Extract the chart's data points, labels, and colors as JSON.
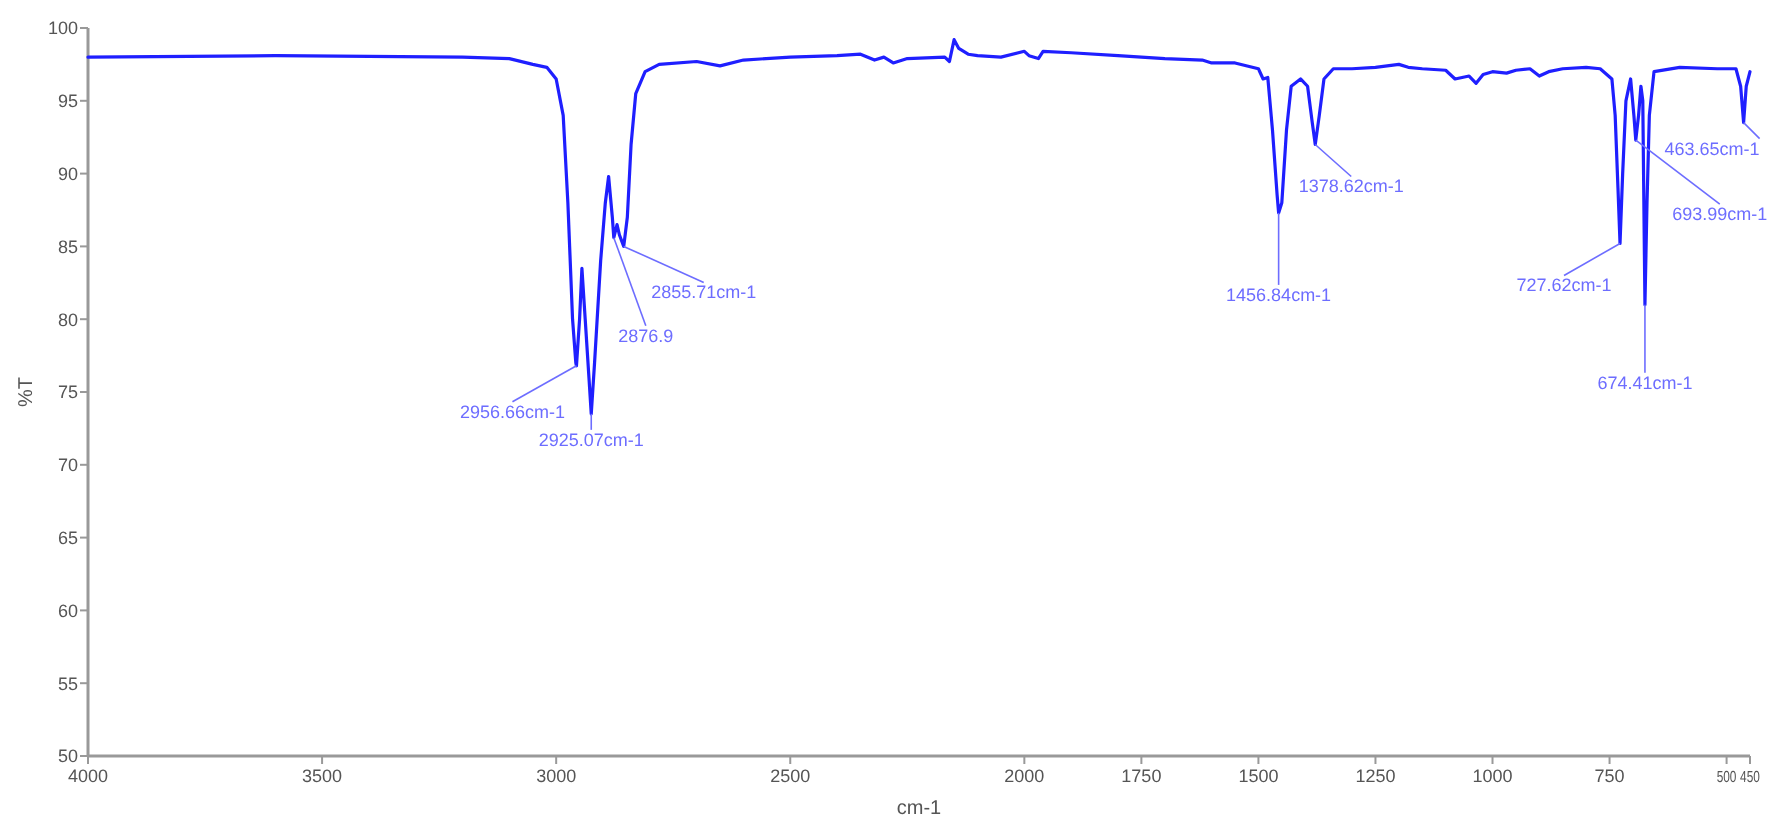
{
  "chart_data": {
    "type": "line",
    "xlabel": "cm-1",
    "ylabel": "%T",
    "xlim": [
      4000,
      450
    ],
    "ylim": [
      50,
      100
    ],
    "xticks": [
      4000,
      3500,
      3000,
      2500,
      2000,
      1750,
      1500,
      1250,
      1000,
      750,
      500,
      450
    ],
    "yticks": [
      50,
      55,
      60,
      65,
      70,
      75,
      80,
      85,
      90,
      95,
      100
    ],
    "marker": "none",
    "line_style": "solid",
    "series": [
      {
        "color": "#1f1fff",
        "x": [
          4000,
          3600,
          3200,
          3100,
          3050,
          3020,
          3000,
          2985,
          2975,
          2965,
          2958,
          2956.66,
          2950,
          2945,
          2938,
          2930,
          2925.07,
          2918,
          2905,
          2895,
          2888,
          2880,
          2876.9,
          2870,
          2865,
          2855.71,
          2848,
          2840,
          2830,
          2810,
          2780,
          2700,
          2650,
          2600,
          2500,
          2400,
          2350,
          2320,
          2300,
          2280,
          2250,
          2170,
          2160,
          2150,
          2140,
          2120,
          2100,
          2050,
          2000,
          1990,
          1970,
          1960,
          1900,
          1800,
          1750,
          1700,
          1620,
          1600,
          1550,
          1500,
          1490,
          1480,
          1470,
          1460,
          1456.84,
          1450,
          1440,
          1430,
          1410,
          1395,
          1385,
          1378.62,
          1370,
          1360,
          1340,
          1300,
          1250,
          1200,
          1180,
          1150,
          1100,
          1080,
          1050,
          1035,
          1020,
          1000,
          970,
          950,
          920,
          900,
          880,
          850,
          800,
          770,
          745,
          738,
          732,
          727.62,
          722,
          715,
          705,
          698,
          693.99,
          688,
          683,
          679,
          674.41,
          670,
          665,
          655,
          600,
          520,
          480,
          470,
          463.65,
          458,
          450
        ],
        "values": [
          98,
          98.1,
          98,
          97.9,
          97.5,
          97.3,
          96.5,
          94,
          88,
          80,
          77,
          76.8,
          80,
          83.5,
          80,
          76,
          73.5,
          77,
          84,
          88,
          89.8,
          87,
          85.6,
          86.5,
          85.8,
          85,
          87,
          92,
          95.5,
          97,
          97.5,
          97.7,
          97.4,
          97.8,
          98,
          98.1,
          98.2,
          97.8,
          98,
          97.6,
          97.9,
          98,
          97.7,
          99.2,
          98.6,
          98.2,
          98.1,
          98,
          98.4,
          98.1,
          97.9,
          98.4,
          98.3,
          98.1,
          98,
          97.9,
          97.8,
          97.6,
          97.6,
          97.2,
          96.5,
          96.6,
          93,
          88.5,
          87.3,
          88,
          93,
          96,
          96.5,
          96,
          93.5,
          92,
          94,
          96.5,
          97.2,
          97.2,
          97.3,
          97.5,
          97.3,
          97.2,
          97.1,
          96.5,
          96.7,
          96.2,
          96.8,
          97,
          96.9,
          97.1,
          97.2,
          96.7,
          97,
          97.2,
          97.3,
          97.2,
          96.5,
          94,
          89,
          85.2,
          90,
          95,
          96.5,
          94,
          92.3,
          94,
          96,
          95,
          81,
          88,
          94,
          97,
          97.3,
          97.2,
          97.2,
          96,
          93.5,
          96,
          97
        ]
      }
    ],
    "annotations": [
      {
        "text": "2956.66cm-1",
        "x": 2956.66,
        "y": 76.8
      },
      {
        "text": "2925.07cm-1",
        "x": 2925.07,
        "y": 73.5
      },
      {
        "text": "2876.9",
        "x": 2876.9,
        "y": 85.6
      },
      {
        "text": "2855.71cm-1",
        "x": 2855.71,
        "y": 85
      },
      {
        "text": "1456.84cm-1",
        "x": 1456.84,
        "y": 87.3
      },
      {
        "text": "1378.62cm-1",
        "x": 1378.62,
        "y": 92
      },
      {
        "text": "727.62cm-1",
        "x": 727.62,
        "y": 85.2
      },
      {
        "text": "693.99cm-1",
        "x": 693.99,
        "y": 92.3
      },
      {
        "text": "674.41cm-1",
        "x": 674.41,
        "y": 81
      },
      {
        "text": "463.65cm-1",
        "x": 463.65,
        "y": 93.5
      }
    ]
  }
}
